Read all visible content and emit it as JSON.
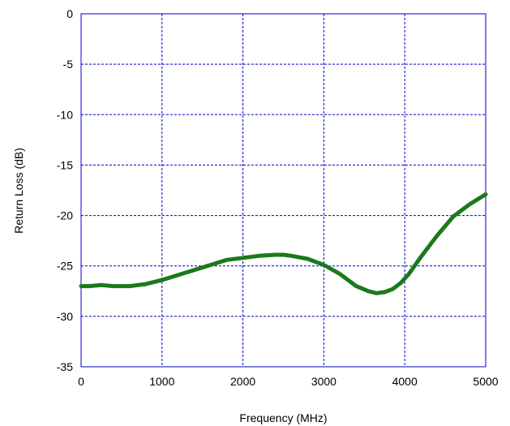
{
  "chart_data": {
    "type": "line",
    "title": "",
    "xlabel": "Frequency (MHz)",
    "ylabel": "Return Loss (dB)",
    "xlim": [
      0,
      5000
    ],
    "ylim": [
      -35,
      0
    ],
    "x_ticks": [
      0,
      1000,
      2000,
      3000,
      4000,
      5000
    ],
    "y_ticks": [
      0,
      -5,
      -10,
      -15,
      -20,
      -25,
      -30,
      -35
    ],
    "x_tick_labels": [
      "0",
      "1000",
      "2000",
      "3000",
      "4000",
      "5000"
    ],
    "y_tick_labels": [
      "0",
      "-5",
      "-10",
      "-15",
      "-20",
      "-25",
      "-30",
      "-35"
    ],
    "grid": true,
    "legend": "none",
    "colors": {
      "frame": "#0000cc",
      "grid": "#0000cc",
      "series": "#1a7a1a"
    },
    "series": [
      {
        "x": [
          0,
          100,
          250,
          400,
          600,
          800,
          1000,
          1200,
          1400,
          1600,
          1800,
          2000,
          2200,
          2400,
          2500,
          2600,
          2800,
          3000,
          3200,
          3400,
          3550,
          3650,
          3750,
          3850,
          3950,
          4050,
          4200,
          4400,
          4600,
          4800,
          5000
        ],
        "values": [
          -27.0,
          -27.0,
          -26.9,
          -27.0,
          -27.0,
          -26.8,
          -26.4,
          -25.9,
          -25.4,
          -24.9,
          -24.4,
          -24.2,
          -24.0,
          -23.9,
          -23.9,
          -24.0,
          -24.3,
          -24.9,
          -25.8,
          -27.0,
          -27.5,
          -27.7,
          -27.6,
          -27.3,
          -26.7,
          -25.8,
          -24.1,
          -22.0,
          -20.1,
          -18.9,
          -17.9
        ]
      }
    ]
  }
}
